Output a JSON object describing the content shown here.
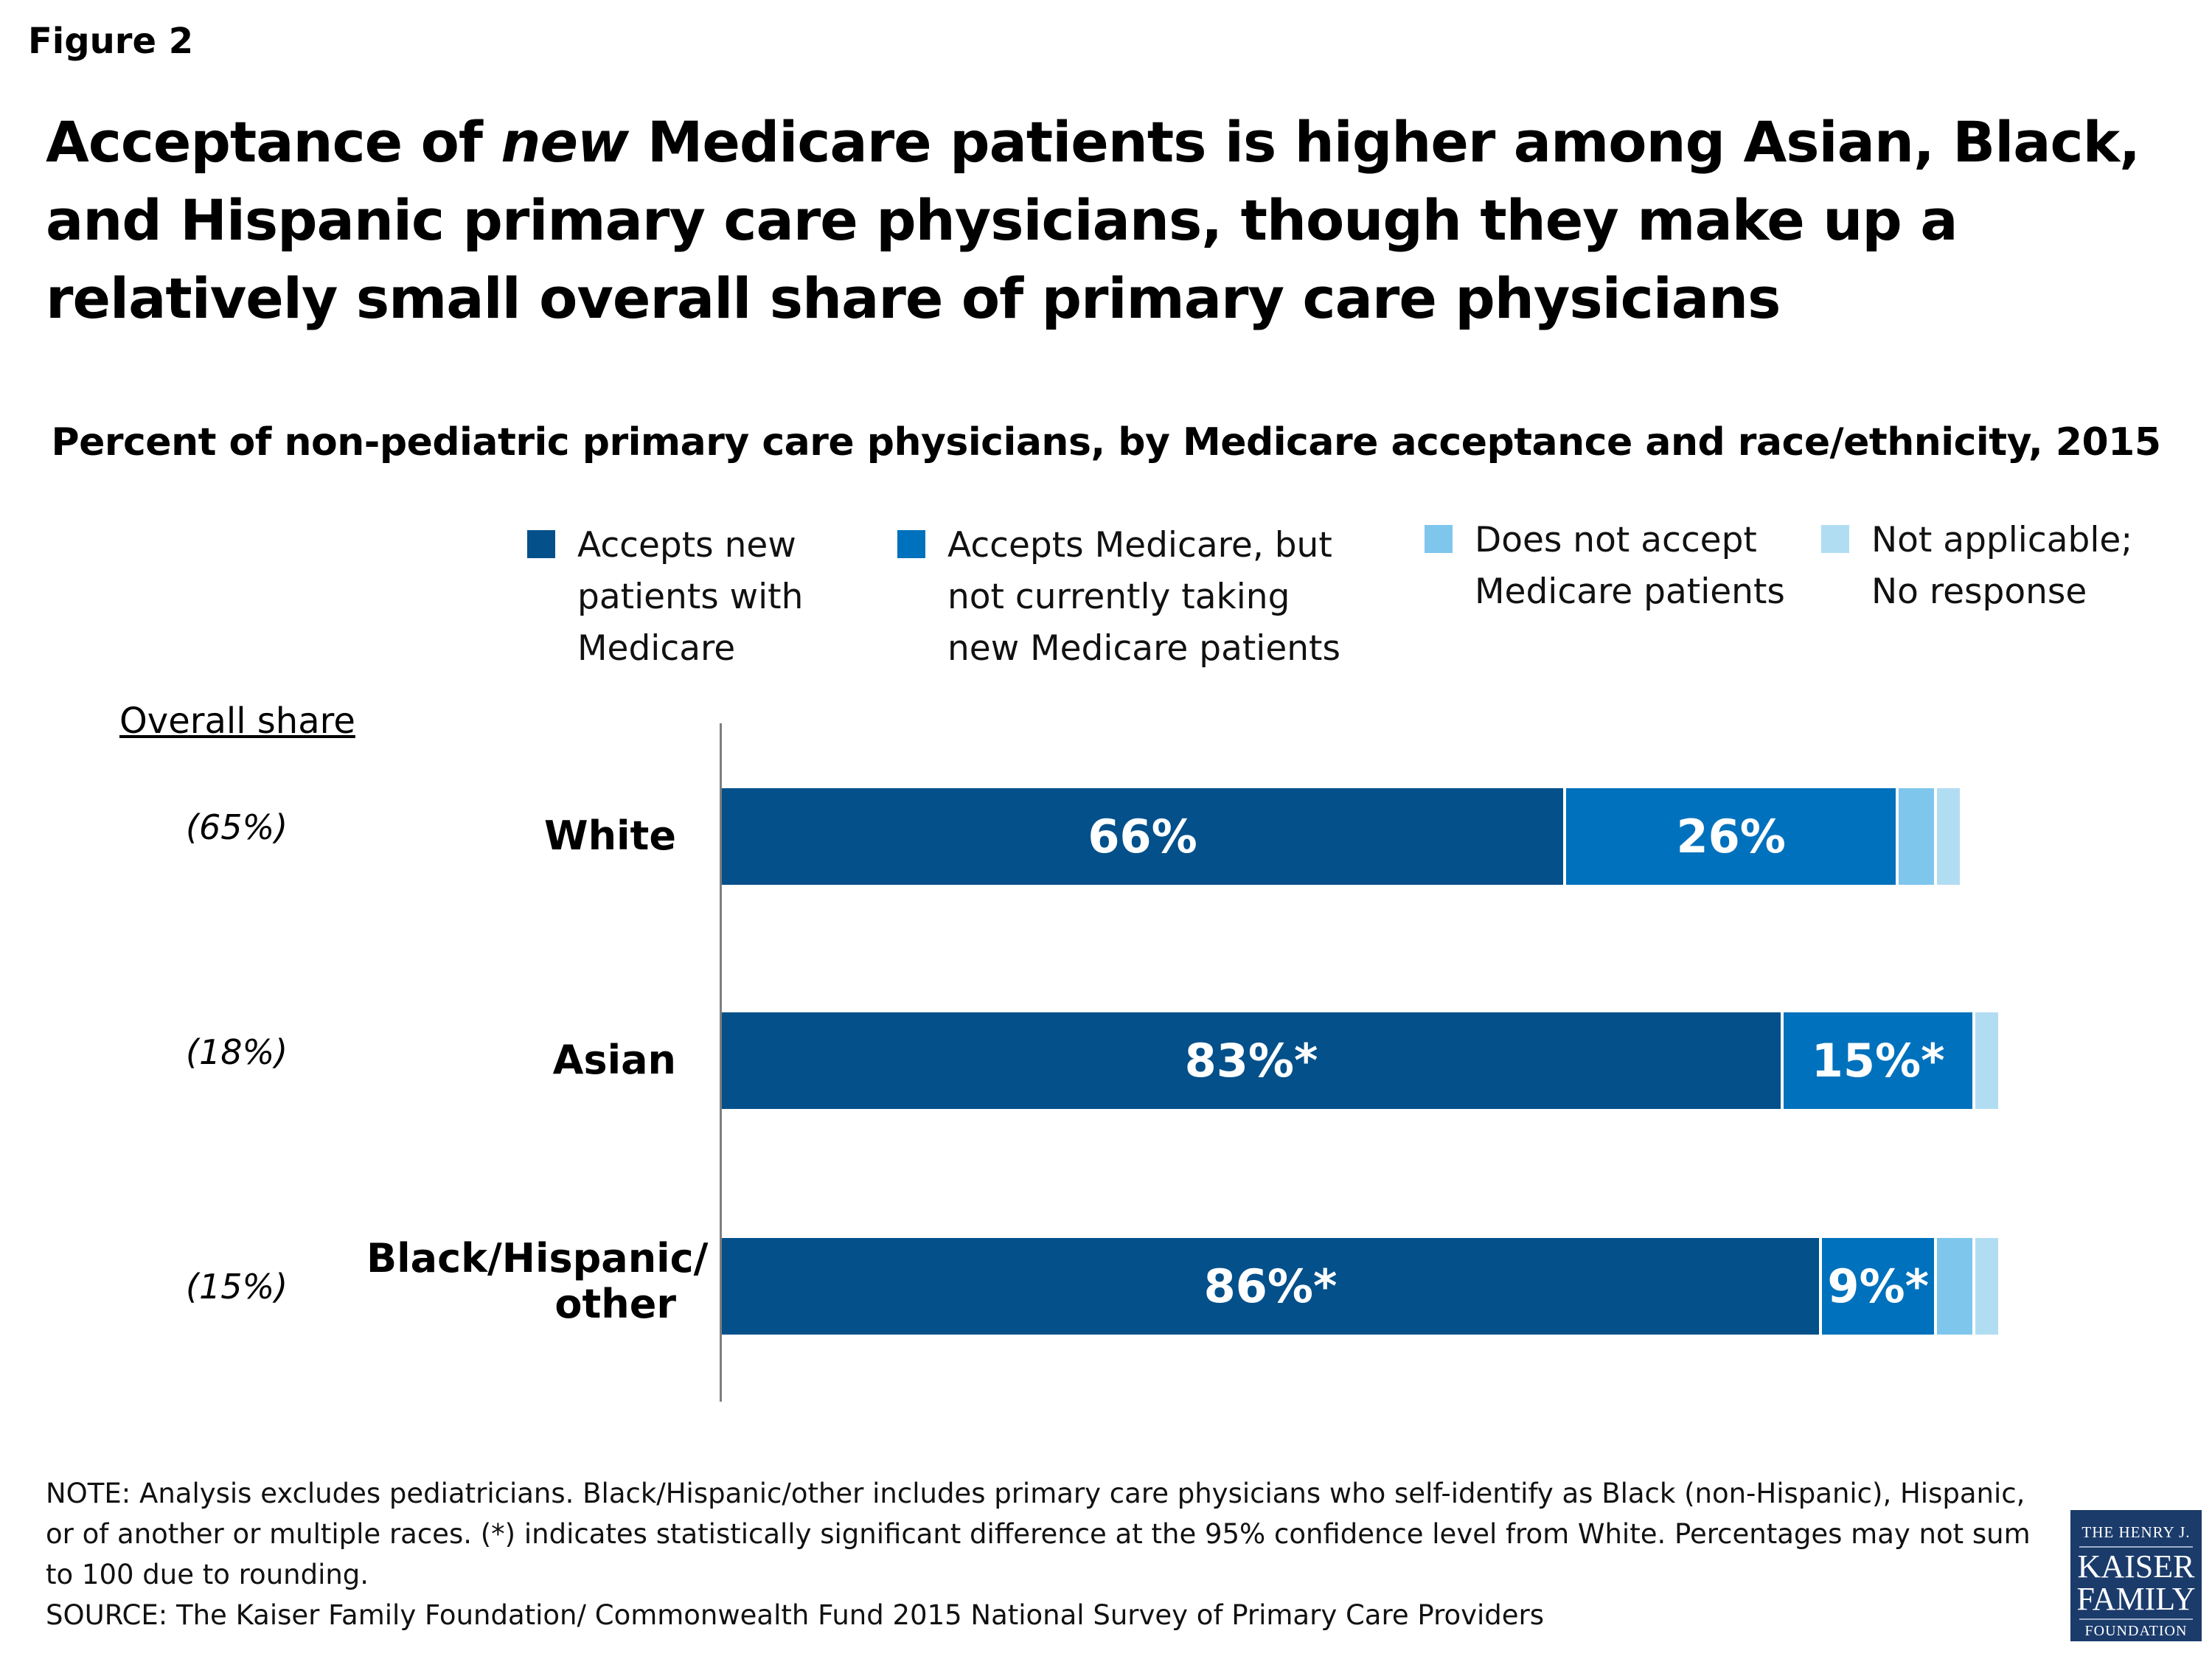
{
  "figure_label": "Figure 2",
  "title_parts": {
    "pre": "Acceptance of ",
    "em": "new",
    "post": " Medicare patients is higher among Asian, Black, and Hispanic primary care physicians, though they make up a relatively small overall share of primary care physicians"
  },
  "overall_share_header": "Overall share",
  "notes": [
    "NOTE: Analysis excludes pediatricians.  Black/Hispanic/other includes primary care physicians who self-identify as Black (non-Hispanic), Hispanic, or of another or multiple races.  (*) indicates statistically significant difference at the 95% confidence level from White. Percentages may not sum to 100 due to rounding.",
    "SOURCE: The Kaiser Family Foundation/ Commonwealth Fund 2015 National Survey of Primary Care Providers"
  ],
  "logo": {
    "line1": "THE HENRY J.",
    "line2": "KAISER",
    "line3": "FAMILY",
    "line4": "FOUNDATION"
  },
  "chart_data": {
    "type": "bar",
    "orientation": "horizontal",
    "stacked": true,
    "title": "Percent of non-pediatric primary care physicians, by Medicare acceptance and race/ethnicity, 2015",
    "categories": [
      "White",
      "Asian",
      "Black/Hispanic/ other"
    ],
    "overall_share": [
      "(65%)",
      "(18%)",
      "(15%)"
    ],
    "series": [
      {
        "name": "Accepts new patients with Medicare",
        "color": "#03508a",
        "values": [
          66,
          83,
          86
        ],
        "labels": [
          "66%",
          "83%*",
          "86%*"
        ]
      },
      {
        "name": "Accepts Medicare, but not currently taking new Medicare patients",
        "color": "#0071bc",
        "values": [
          26,
          15,
          9
        ],
        "labels": [
          "26%",
          "15%*",
          "9%*"
        ]
      },
      {
        "name": "Does not accept Medicare patients",
        "color": "#7fc6ed",
        "values": [
          3,
          0,
          3
        ],
        "labels": [
          "",
          "",
          ""
        ]
      },
      {
        "name": "Not applicable; No response",
        "color": "#b1ddf3",
        "values": [
          2,
          2,
          2
        ],
        "labels": [
          "",
          "",
          ""
        ]
      }
    ],
    "legend_position": "top",
    "grid": false,
    "xlim": [
      0,
      100
    ]
  }
}
